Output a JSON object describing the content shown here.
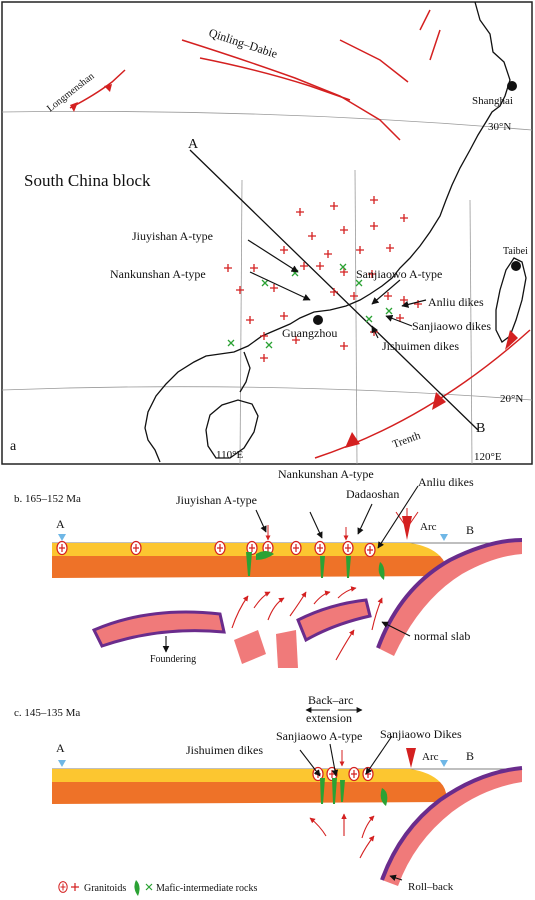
{
  "map": {
    "panel_letter": "a",
    "qinling": "Qinling–Dabie",
    "longmenshan": "Longmenshan",
    "shanghai": "Shanghai",
    "lat30": "30°N",
    "south_china": "South China block",
    "point_a": "A",
    "point_b": "B",
    "jiuyishan": "Jiuyishan A-type",
    "nankunshan": "Nankunshan A-type",
    "sanjiaowo_a": "Sanjiaowo A-type",
    "anliu": "Anliu dikes",
    "sanjiaowo_dikes": "Sanjiaowo dikes",
    "jishuimen": "Jishuimen dikes",
    "guangzhou": "Guangzhou",
    "taibei": "Taibei",
    "lat20": "20°N",
    "trench": "Trenth",
    "lon110": "110°E",
    "lon120": "120°E"
  },
  "section_b": {
    "title": "b. 165–152 Ma",
    "point_a": "A",
    "point_b": "B",
    "jiuyishan": "Jiuyishan  A-type",
    "nankunshan": "Nankunshan  A-type",
    "dadaoshan": "Dadaoshan",
    "anliu": "Anliu dikes",
    "arc": "Arc",
    "normal_slab": "normal  slab",
    "foundering": "Foundering"
  },
  "section_c": {
    "title": "c. 145–135 Ma",
    "point_a": "A",
    "point_b": "B",
    "back_arc_1": "Back–arc",
    "back_arc_2": "extension",
    "sanjiaowo_a": "Sanjiaowo A-type",
    "sanjiaowo_dikes": "Sanjiaowo Dikes",
    "jishuimen": "Jishuimen dikes",
    "arc": "Arc",
    "roll_back": "Roll–back"
  },
  "legend": {
    "granitoids": "Granitoids",
    "mafic": "Mafic-intermediate rocks"
  },
  "colors": {
    "crust_upper": "#fcc630",
    "crust_lower": "#ee7228",
    "slab": "#f07a7a",
    "slab_top": "#6a2c8c",
    "granite": "#e0231c",
    "mafic": "#2ba234",
    "water": "#6fb7e6"
  }
}
